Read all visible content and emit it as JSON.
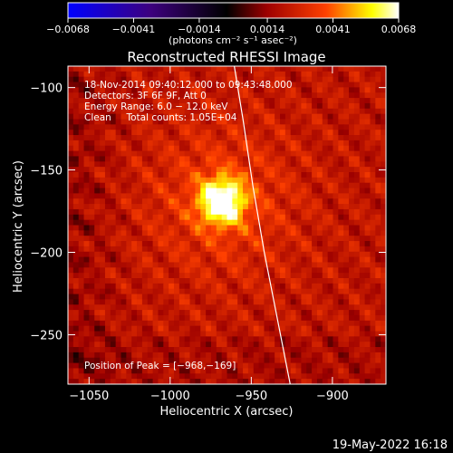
{
  "chart_data": {
    "type": "heatmap",
    "title": "Reconstructed RHESSI Image",
    "xlabel": "Heliocentric X (arcsec)",
    "ylabel": "Heliocentric Y (arcsec)",
    "xlim": [
      -1063,
      -867
    ],
    "ylim": [
      -280,
      -87
    ],
    "x_ticks": [
      -1050,
      -1000,
      -950,
      -900
    ],
    "x_tick_labels": [
      "−1050",
      "−1000",
      "−950",
      "−900"
    ],
    "y_ticks": [
      -100,
      -150,
      -200,
      -250
    ],
    "y_tick_labels": [
      "−100",
      "−150",
      "−200",
      "−250"
    ],
    "colorbar": {
      "range": [
        -0.0068,
        0.0068
      ],
      "tick_values": [
        -0.0068,
        -0.0041,
        -0.0014,
        0.0014,
        0.0041,
        0.0068
      ],
      "tick_labels": [
        "−0.0068",
        "−0.0041",
        "−0.0014",
        "0.0014",
        "0.0041",
        "0.0068"
      ],
      "unit_label": "(photons cm⁻² s⁻¹ asec⁻²)",
      "colors": [
        "#0000ff",
        "#3d007e",
        "#000000",
        "#9c0000",
        "#ff4000",
        "#ffff00",
        "#ffffff"
      ]
    },
    "peak": {
      "x": -968,
      "y": -169
    },
    "annotations": [
      "18-Nov-2014 09:40:12.000 to 09:43:48.000",
      "Detectors: 3F 6F 9F, Att 0",
      "Energy Range: 6.0 − 12.0 keV",
      "Clean     Total counts: 1.05E+04",
      "Position of Peak = [−968,−169]"
    ],
    "limb_curve": [
      [
        -960.5,
        -87
      ],
      [
        -955,
        -120
      ],
      [
        -949,
        -160
      ],
      [
        -942,
        -200
      ],
      [
        -934,
        -240
      ],
      [
        -926,
        -280
      ]
    ],
    "grid": false
  },
  "footer": {
    "timestamp": "19-May-2022 16:18"
  }
}
